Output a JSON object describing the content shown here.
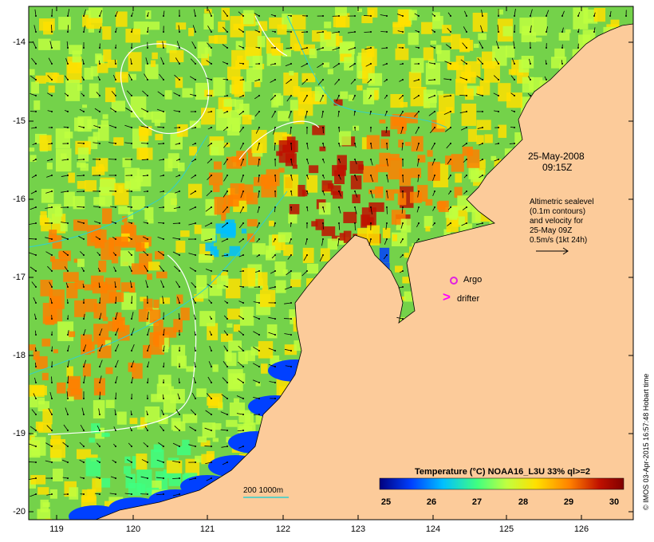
{
  "map": {
    "date": "25-May-2008",
    "time": "09:15Z",
    "info_lines": [
      "Altimetric sealevel",
      "(0.1m contours)",
      "and velocity for",
      "25-May 09Z",
      "0.5m/s (1kt 24h)"
    ],
    "argo_label": "Argo",
    "drifter_label": "drifter",
    "drifter_symbol": ">",
    "scale_label": "200  1000m",
    "credit": "© IMOS 03-Apr-2015 16:57:48 Hobart time",
    "y_ticks": [
      "-14",
      "-15",
      "-16",
      "-17",
      "-18",
      "-19",
      "-20"
    ],
    "x_ticks": [
      "119",
      "120",
      "121",
      "122",
      "123",
      "124",
      "125",
      "126"
    ],
    "colorbar": {
      "title": "Temperature (°C) NOAA16_L3U 33% ql>=2",
      "ticks": [
        "25",
        "26",
        "27",
        "28",
        "29",
        "30"
      ],
      "colors": [
        "#00007f",
        "#0040ff",
        "#00c0ff",
        "#40ff80",
        "#c0ff40",
        "#ffe000",
        "#ff8000",
        "#c01000",
        "#800000"
      ]
    },
    "colors": {
      "land": "#fccb9a",
      "argo": "#e020e0",
      "drifter": "#ff00ff",
      "contour_cyan": "#30d0d0",
      "contour_white": "#ffffff"
    }
  }
}
